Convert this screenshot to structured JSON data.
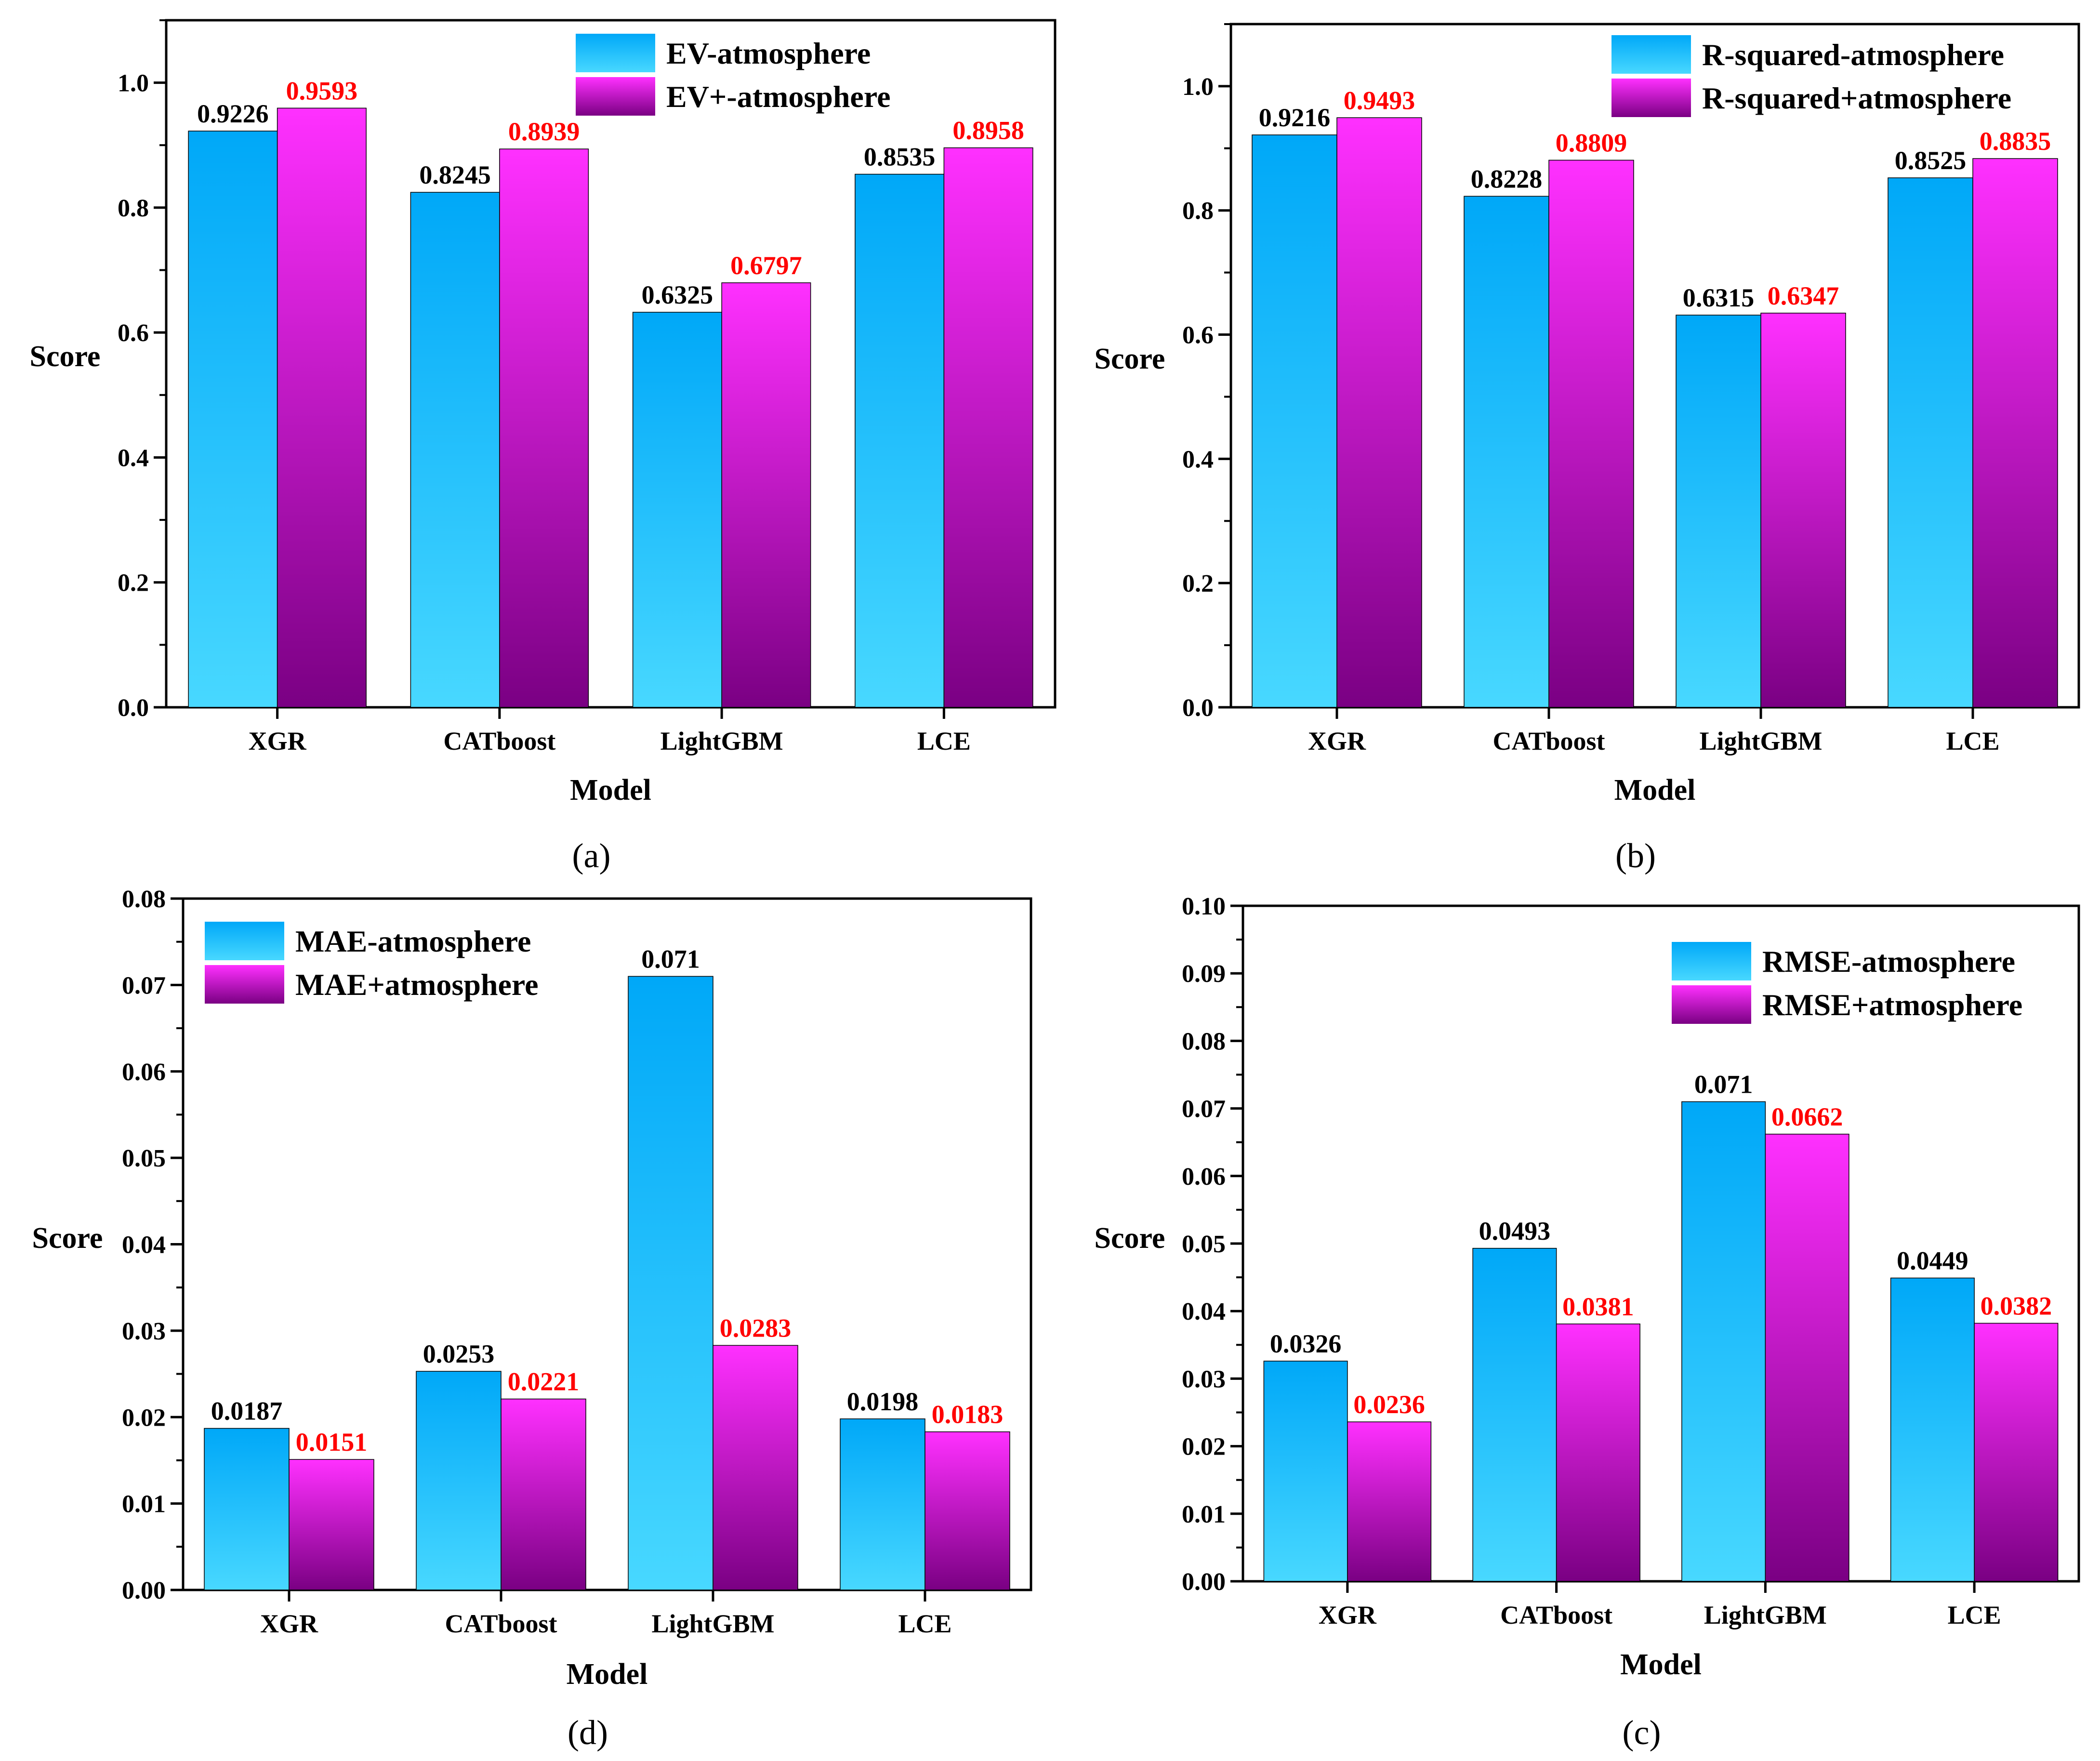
{
  "colors": {
    "series1_top": "#00a8f8",
    "series1_bottom": "#48d8ff",
    "series2_top": "#ff30ff",
    "series2_bottom": "#7a0083",
    "series1_label": "#000000",
    "series2_label": "#ff0000"
  },
  "chart_data": [
    {
      "type": "bar",
      "caption": "(a)",
      "categories": [
        "XGR",
        "CATboost",
        "LightGBM",
        "LCE"
      ],
      "series": [
        {
          "name": "EV-atmosphere",
          "values": [
            0.9226,
            0.8245,
            0.6325,
            0.8535
          ],
          "labels": [
            "0.9226",
            "0.8245",
            "0.6325",
            "0.8535"
          ]
        },
        {
          "name": "EV+-atmosphere",
          "values": [
            0.9593,
            0.8939,
            0.6797,
            0.8958
          ],
          "labels": [
            "0.9593",
            "0.8939",
            "0.6797",
            "0.8958"
          ]
        }
      ],
      "xlabel": "Model",
      "ylabel": "Score",
      "ylim": [
        0,
        1.1
      ],
      "yticks": [
        "0.0",
        "0.2",
        "0.4",
        "0.6",
        "0.8",
        "1.0"
      ],
      "yticks_values": [
        0,
        0.2,
        0.4,
        0.6,
        0.8,
        1.0
      ],
      "legend_position": "top-right"
    },
    {
      "type": "bar",
      "caption": "(b)",
      "categories": [
        "XGR",
        "CATboost",
        "LightGBM",
        "LCE"
      ],
      "series": [
        {
          "name": "R-squared-atmosphere",
          "values": [
            0.9216,
            0.8228,
            0.6315,
            0.8525
          ],
          "labels": [
            "0.9216",
            "0.8228",
            "0.6315",
            "0.8525"
          ]
        },
        {
          "name": "R-squared+atmosphere",
          "values": [
            0.9493,
            0.8809,
            0.6347,
            0.8835
          ],
          "labels": [
            "0.9493",
            "0.8809",
            "0.6347",
            "0.8835"
          ]
        }
      ],
      "xlabel": "Model",
      "ylabel": "Score",
      "ylim": [
        0,
        1.1
      ],
      "yticks": [
        "0.0",
        "0.2",
        "0.4",
        "0.6",
        "0.8",
        "1.0"
      ],
      "yticks_values": [
        0,
        0.2,
        0.4,
        0.6,
        0.8,
        1.0
      ],
      "legend_position": "top-right"
    },
    {
      "type": "bar",
      "caption": "(d)",
      "categories": [
        "XGR",
        "CATboost",
        "LightGBM",
        "LCE"
      ],
      "series": [
        {
          "name": "MAE-atmosphere",
          "values": [
            0.0187,
            0.0253,
            0.071,
            0.0198
          ],
          "labels": [
            "0.0187",
            "0.0253",
            "0.071",
            "0.0198"
          ]
        },
        {
          "name": "MAE+atmosphere",
          "values": [
            0.0151,
            0.0221,
            0.0283,
            0.0183
          ],
          "labels": [
            "0.0151",
            "0.0221",
            "0.0283",
            "0.0183"
          ]
        }
      ],
      "xlabel": "Model",
      "ylabel": "Score",
      "ylim": [
        0,
        0.08
      ],
      "yticks": [
        "0.00",
        "0.01",
        "0.02",
        "0.03",
        "0.04",
        "0.05",
        "0.06",
        "0.07",
        "0.08"
      ],
      "yticks_values": [
        0,
        0.01,
        0.02,
        0.03,
        0.04,
        0.05,
        0.06,
        0.07,
        0.08
      ],
      "legend_position": "top-left"
    },
    {
      "type": "bar",
      "caption": "(c)",
      "categories": [
        "XGR",
        "CATboost",
        "LightGBM",
        "LCE"
      ],
      "series": [
        {
          "name": "RMSE-atmosphere",
          "values": [
            0.0326,
            0.0493,
            0.071,
            0.0449
          ],
          "labels": [
            "0.0326",
            "0.0493",
            "0.071",
            "0.0449"
          ]
        },
        {
          "name": "RMSE+atmosphere",
          "values": [
            0.0236,
            0.0381,
            0.0662,
            0.0382
          ],
          "labels": [
            "0.0236",
            "0.0381",
            "0.0662",
            "0.0382"
          ]
        }
      ],
      "xlabel": "Model",
      "ylabel": "Score",
      "ylim": [
        0,
        0.1
      ],
      "yticks": [
        "0.00",
        "0.01",
        "0.02",
        "0.03",
        "0.04",
        "0.05",
        "0.06",
        "0.07",
        "0.08",
        "0.09",
        "0.10"
      ],
      "yticks_values": [
        0,
        0.01,
        0.02,
        0.03,
        0.04,
        0.05,
        0.06,
        0.07,
        0.08,
        0.09,
        0.1
      ],
      "legend_position": "top-right"
    }
  ]
}
